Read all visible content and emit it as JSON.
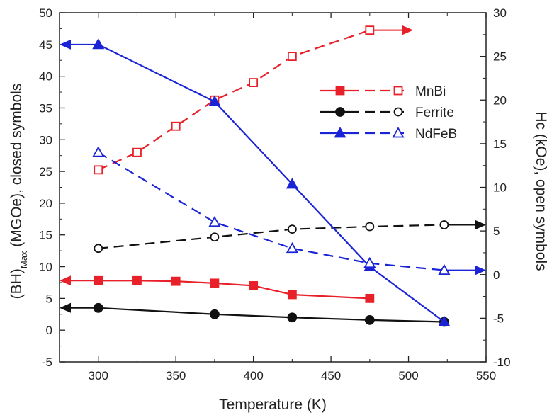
{
  "chart_data": {
    "type": "line",
    "xlabel": "Temperature (K)",
    "ylabel_left": {
      "main": "(BH)",
      "sub": "Max",
      "rest": " (MGOe), closed symbols"
    },
    "ylabel_right": "Hc (kOe), open symbols",
    "xlim": [
      275,
      550
    ],
    "ylim_left": [
      -5,
      50
    ],
    "ylim_right": [
      -10,
      30
    ],
    "x_ticks": [
      "300",
      "350",
      "400",
      "450",
      "500",
      "550"
    ],
    "y_ticks_left": [
      "-5",
      "0",
      "5",
      "10",
      "15",
      "20",
      "25",
      "30",
      "35",
      "40",
      "45",
      "50"
    ],
    "y_ticks_right": [
      "-10",
      "-5",
      "0",
      "5",
      "10",
      "15",
      "20",
      "25",
      "30"
    ],
    "grid": false,
    "legend_position": "top-right",
    "colors": {
      "MnBi": "#e8202a",
      "Ferrite": "#111111",
      "NdFeB": "#1a24d6"
    },
    "series": [
      {
        "name": "MnBi",
        "axis": "left",
        "marker": "square-filled",
        "dash": false,
        "arrow": "left",
        "x": [
          300,
          325,
          350,
          375,
          400,
          425,
          475
        ],
        "y": [
          7.8,
          7.8,
          7.7,
          7.4,
          7.0,
          5.6,
          5.0
        ]
      },
      {
        "name": "MnBi",
        "axis": "right",
        "marker": "square-open",
        "dash": true,
        "arrow": "right",
        "x": [
          300,
          325,
          350,
          375,
          400,
          425,
          475
        ],
        "y": [
          12,
          14,
          17,
          20,
          22,
          25,
          28
        ]
      },
      {
        "name": "Ferrite",
        "axis": "left",
        "marker": "circle-filled",
        "dash": false,
        "arrow": "left",
        "x": [
          300,
          375,
          425,
          475,
          523
        ],
        "y": [
          3.5,
          2.5,
          2.0,
          1.6,
          1.3
        ]
      },
      {
        "name": "Ferrite",
        "axis": "right",
        "marker": "circle-open",
        "dash": true,
        "arrow": "right",
        "x": [
          300,
          375,
          425,
          475,
          523
        ],
        "y": [
          3.0,
          4.3,
          5.2,
          5.5,
          5.7
        ]
      },
      {
        "name": "NdFeB",
        "axis": "left",
        "marker": "triangle-filled",
        "dash": false,
        "arrow": "left",
        "x": [
          300,
          375,
          425,
          475,
          523
        ],
        "y": [
          45,
          36,
          23,
          10,
          1.3
        ]
      },
      {
        "name": "NdFeB",
        "axis": "right",
        "marker": "triangle-open",
        "dash": true,
        "arrow": "right",
        "x": [
          300,
          375,
          425,
          475,
          523
        ],
        "y": [
          14,
          6,
          3,
          1.3,
          0.5
        ]
      }
    ],
    "legend": [
      {
        "label": "MnBi",
        "series": "MnBi"
      },
      {
        "label": "Ferrite",
        "series": "Ferrite"
      },
      {
        "label": "NdFeB",
        "series": "NdFeB"
      }
    ]
  }
}
